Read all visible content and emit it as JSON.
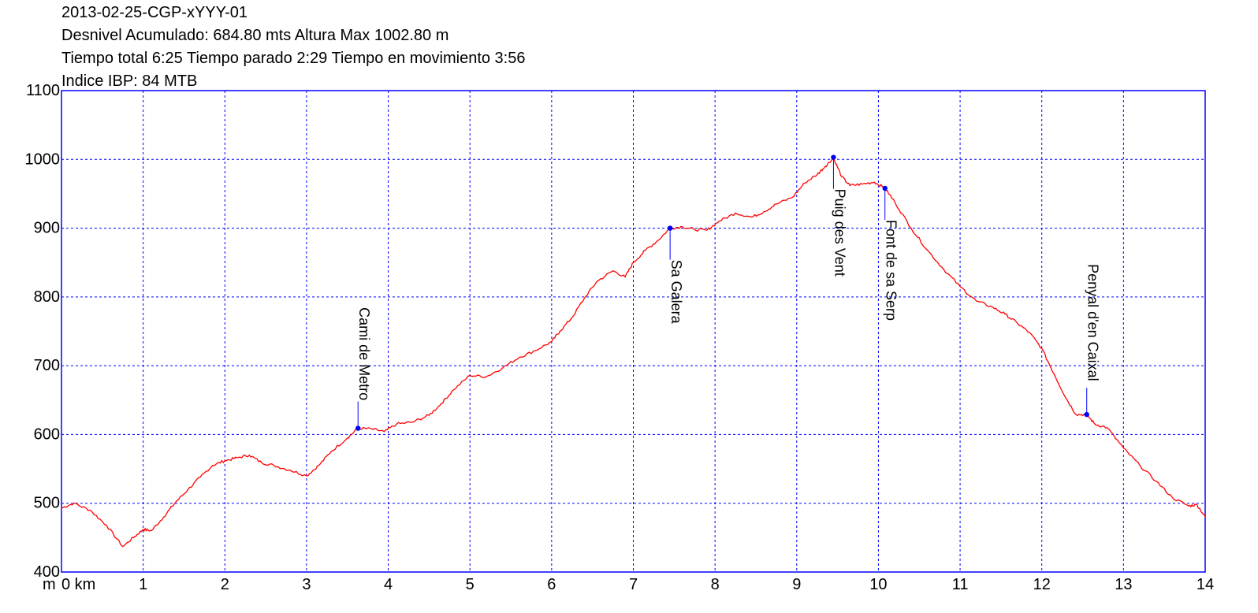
{
  "header": {
    "line1": "2013-02-25-CGP-xYYY-01",
    "line2": "Desnivel Acumulado: 684.80 mts  Altura Max 1002.80 m",
    "line3": "Tiempo total 6:25 Tiempo parado 2:29 Tiempo en movimiento 3:56",
    "line4": "Indice IBP: 84 MTB"
  },
  "chart_data": {
    "type": "line",
    "title": "",
    "xlabel": "km",
    "ylabel": "m",
    "xlim": [
      0,
      14
    ],
    "ylim": [
      400,
      1100
    ],
    "x_ticks": [
      0,
      1,
      2,
      3,
      4,
      5,
      6,
      7,
      8,
      9,
      10,
      11,
      12,
      13,
      14
    ],
    "x_tick_labels": [
      "0 km",
      "1",
      "2",
      "3",
      "4",
      "5",
      "6",
      "7",
      "8",
      "9",
      "10",
      "11",
      "12",
      "13",
      "14"
    ],
    "y_ticks": [
      400,
      500,
      600,
      700,
      800,
      900,
      1000,
      1100
    ],
    "y_unit_label": "m",
    "grid": true,
    "colors": {
      "profile": "#ff0000",
      "grid": "#0000ff",
      "frame": "#0000ff",
      "waypoint": "#0000ff"
    },
    "series": [
      {
        "x": [
          0,
          0.15,
          0.35,
          0.55,
          0.75,
          0.9,
          1.0,
          1.1,
          1.25,
          1.4,
          1.55,
          1.7,
          1.85,
          2.0,
          2.15,
          2.3,
          2.45,
          2.6,
          2.8,
          3.0,
          3.15,
          3.3,
          3.5,
          3.63,
          3.8,
          3.95,
          4.1,
          4.3,
          4.5,
          4.65,
          4.8,
          5.0,
          5.2,
          5.4,
          5.6,
          5.8,
          6.0,
          6.1,
          6.25,
          6.4,
          6.55,
          6.75,
          6.9,
          7.0,
          7.15,
          7.3,
          7.45,
          7.6,
          7.75,
          7.9,
          8.05,
          8.25,
          8.45,
          8.6,
          8.75,
          8.95,
          9.1,
          9.25,
          9.35,
          9.45,
          9.55,
          9.65,
          9.8,
          9.95,
          10.08,
          10.2,
          10.4,
          10.6,
          10.8,
          11.0,
          11.2,
          11.4,
          11.55,
          11.7,
          11.85,
          12.0,
          12.15,
          12.3,
          12.42,
          12.55,
          12.65,
          12.8,
          13.0,
          13.2,
          13.4,
          13.6,
          13.8,
          13.9,
          14.0
        ],
        "y": [
          493,
          500,
          490,
          468,
          437,
          452,
          462,
          460,
          480,
          502,
          520,
          538,
          555,
          562,
          566,
          570,
          559,
          555,
          548,
          540,
          555,
          575,
          595,
          609,
          608,
          604,
          615,
          618,
          628,
          645,
          665,
          686,
          684,
          697,
          712,
          722,
          735,
          750,
          770,
          798,
          822,
          838,
          829,
          850,
          868,
          882,
          900,
          902,
          898,
          897,
          910,
          922,
          916,
          924,
          935,
          945,
          966,
          978,
          990,
          1002,
          975,
          962,
          964,
          967,
          958,
          938,
          900,
          868,
          840,
          815,
          794,
          785,
          775,
          762,
          748,
          725,
          688,
          652,
          629,
          629,
          615,
          610,
          580,
          555,
          532,
          508,
          496,
          498,
          480
        ]
      }
    ],
    "waypoints": [
      {
        "name": "Cami de Metro",
        "x": 3.63,
        "y": 609
      },
      {
        "name": "Sa Galera",
        "x": 7.45,
        "y": 900
      },
      {
        "name": "Puig des Vent",
        "x": 9.45,
        "y": 1003
      },
      {
        "name": "Font de sa Serp",
        "x": 10.08,
        "y": 958
      },
      {
        "name": "Penyal d'en Caixal",
        "x": 12.55,
        "y": 629
      }
    ]
  }
}
